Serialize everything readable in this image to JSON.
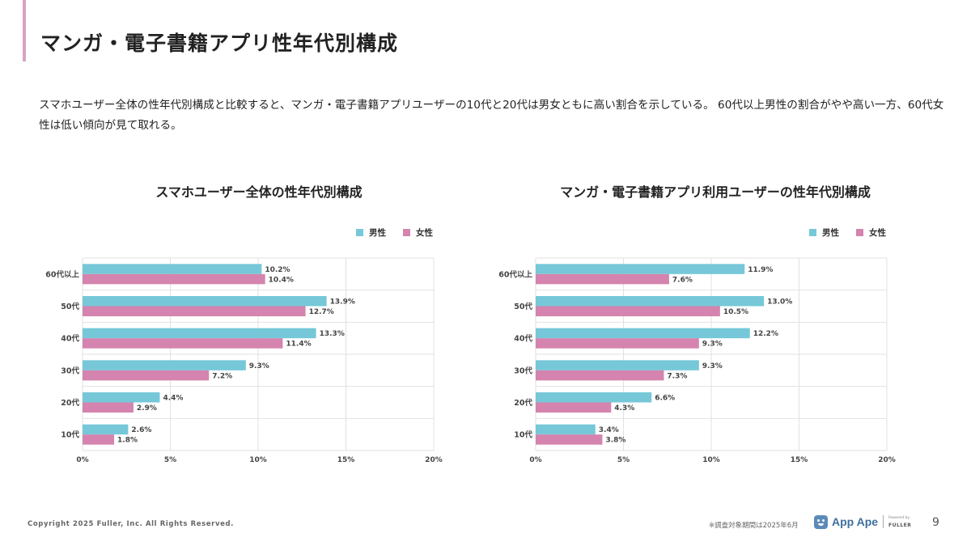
{
  "page": {
    "title": "マンガ・電子書籍アプリ性年代別構成",
    "description": "スマホユーザー全体の性年代別構成と比較すると、マンガ・電子書籍アプリユーザーの10代と20代は男女ともに高い割合を示している。 60代以上男性の割合がやや高い一方、60代女性は低い傾向が見て取れる。",
    "copyright": "Copyright 2025 Fuller, Inc. All Rights Reserved.",
    "note": "※調査対象期間は2025年6月",
    "brand_name": "App Ape",
    "brand_powered": "Powered by",
    "brand_fuller": "FULLER",
    "page_number": "9"
  },
  "colors": {
    "male": "#76c8d8",
    "female": "#d484ae",
    "grid": "#e2e2e2",
    "accent": "#d9a3c5"
  },
  "chart_data": [
    {
      "type": "bar",
      "orientation": "horizontal",
      "title": "スマホユーザー全体の性年代別構成",
      "categories": [
        "60代以上",
        "50代",
        "40代",
        "30代",
        "20代",
        "10代"
      ],
      "series": [
        {
          "name": "男性",
          "values": [
            10.2,
            13.9,
            13.3,
            9.3,
            4.4,
            2.6
          ],
          "labels": [
            "10.2%",
            "13.9%",
            "13.3%",
            "9.3%",
            "4.4%",
            "2.6%"
          ]
        },
        {
          "name": "女性",
          "values": [
            10.4,
            12.7,
            11.4,
            7.2,
            2.9,
            1.8
          ],
          "labels": [
            "10.4%",
            "12.7%",
            "11.4%",
            "7.2%",
            "2.9%",
            "1.8%"
          ]
        }
      ],
      "xlim": [
        0,
        20
      ],
      "xticks": [
        "0%",
        "5%",
        "10%",
        "15%",
        "20%"
      ],
      "grid": true,
      "legend": "top-right"
    },
    {
      "type": "bar",
      "orientation": "horizontal",
      "title": "マンガ・電子書籍アプリ利用ユーザーの性年代別構成",
      "categories": [
        "60代以上",
        "50代",
        "40代",
        "30代",
        "20代",
        "10代"
      ],
      "series": [
        {
          "name": "男性",
          "values": [
            11.9,
            13.0,
            12.2,
            9.3,
            6.6,
            3.4
          ],
          "labels": [
            "11.9%",
            "13.0%",
            "12.2%",
            "9.3%",
            "6.6%",
            "3.4%"
          ]
        },
        {
          "name": "女性",
          "values": [
            7.6,
            10.5,
            9.3,
            7.3,
            4.3,
            3.8
          ],
          "labels": [
            "7.6%",
            "10.5%",
            "9.3%",
            "7.3%",
            "4.3%",
            "3.8%"
          ]
        }
      ],
      "xlim": [
        0,
        20
      ],
      "xticks": [
        "0%",
        "5%",
        "10%",
        "15%",
        "20%"
      ],
      "grid": true,
      "legend": "top-right"
    }
  ]
}
